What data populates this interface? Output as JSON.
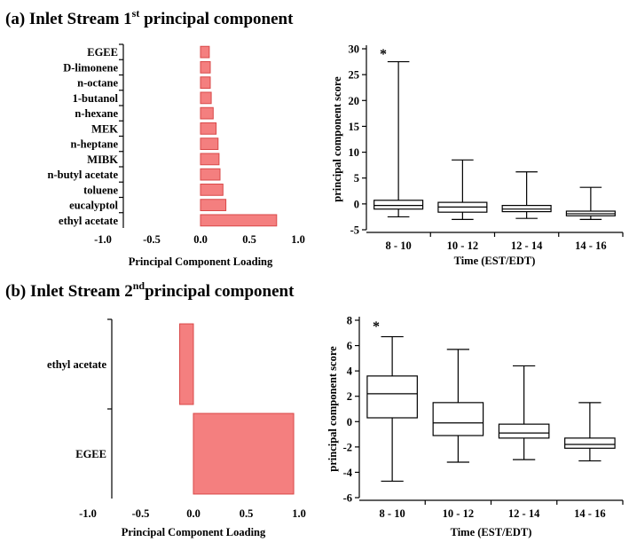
{
  "panels": {
    "a": {
      "title_prefix": "(a) Inlet Stream 1",
      "title_sup": "st",
      "title_suffix": " principal component",
      "star": "*"
    },
    "b": {
      "title_prefix": "(b) Inlet Stream 2",
      "title_sup": "nd",
      "title_suffix": "principal component",
      "star": "*"
    }
  },
  "chart_data": [
    {
      "id": "a-loadings",
      "type": "bar",
      "orientation": "horizontal",
      "categories": [
        "ethyl acetate",
        "eucalyptol",
        "toluene",
        "n-butyl acetate",
        "MIBK",
        "n-heptane",
        "MEK",
        "n-hexane",
        "1-butanol",
        "n-octane",
        "D-limonene",
        "EGEE"
      ],
      "values": [
        0.78,
        0.26,
        0.23,
        0.2,
        0.19,
        0.18,
        0.16,
        0.13,
        0.11,
        0.1,
        0.1,
        0.09
      ],
      "xlabel": "Principal Component Loading",
      "xlim": [
        -1.0,
        1.0
      ],
      "xticks": [
        "-1.0",
        "-0.5",
        "0.0",
        "0.5",
        "1.0"
      ]
    },
    {
      "id": "a-scores",
      "type": "box",
      "categories": [
        "8 - 10",
        "10 - 12",
        "12 - 14",
        "14 - 16"
      ],
      "boxes": [
        {
          "min": -2.5,
          "q1": -1.0,
          "median": -0.3,
          "q3": 0.7,
          "max": 27.5
        },
        {
          "min": -3.0,
          "q1": -1.6,
          "median": -0.6,
          "q3": 0.3,
          "max": 8.5
        },
        {
          "min": -2.8,
          "q1": -1.5,
          "median": -1.0,
          "q3": -0.3,
          "max": 6.2
        },
        {
          "min": -3.0,
          "q1": -2.3,
          "median": -1.9,
          "q3": -1.4,
          "max": 3.2
        }
      ],
      "xlabel": "Time (EST/EDT)",
      "ylabel": "principal component score",
      "ylim": [
        -5,
        30
      ],
      "yticks": [
        "-5",
        "0",
        "5",
        "10",
        "15",
        "20",
        "25",
        "30"
      ]
    },
    {
      "id": "b-loadings",
      "type": "bar",
      "orientation": "horizontal",
      "categories": [
        "EGEE",
        "ethyl acetate"
      ],
      "values": [
        0.95,
        -0.13
      ],
      "xlabel": "Principal Component Loading",
      "xlim": [
        -1.0,
        1.0
      ],
      "xticks": [
        "-1.0",
        "-0.5",
        "0.0",
        "0.5",
        "1.0"
      ]
    },
    {
      "id": "b-scores",
      "type": "box",
      "categories": [
        "8 - 10",
        "10 - 12",
        "12 - 14",
        "14 - 16"
      ],
      "boxes": [
        {
          "min": -4.7,
          "q1": 0.3,
          "median": 2.2,
          "q3": 3.6,
          "max": 6.7
        },
        {
          "min": -3.2,
          "q1": -1.1,
          "median": -0.1,
          "q3": 1.5,
          "max": 5.7
        },
        {
          "min": -3.0,
          "q1": -1.3,
          "median": -0.9,
          "q3": -0.2,
          "max": 4.4
        },
        {
          "min": -3.1,
          "q1": -2.1,
          "median": -1.8,
          "q3": -1.3,
          "max": 1.5
        }
      ],
      "xlabel": "Time (EST/EDT)",
      "ylabel": "principal component score",
      "ylim": [
        -6,
        8
      ],
      "yticks": [
        "-6",
        "-4",
        "-2",
        "0",
        "2",
        "4",
        "6",
        "8"
      ]
    }
  ]
}
